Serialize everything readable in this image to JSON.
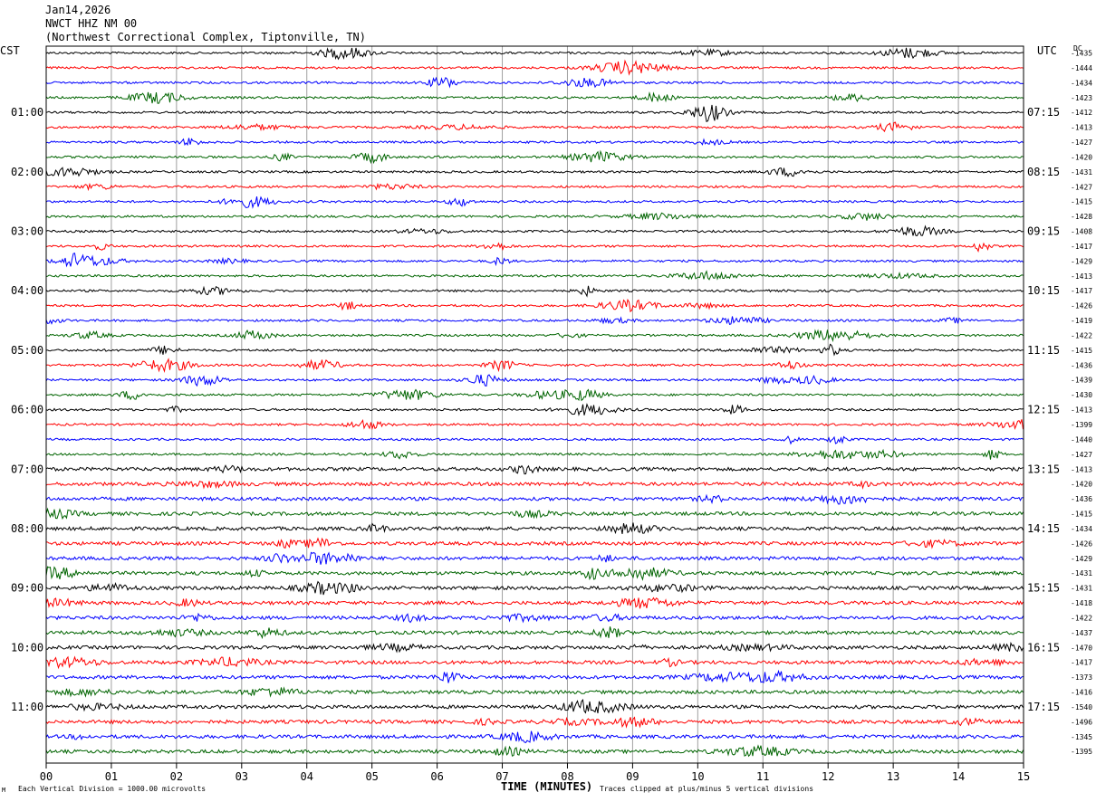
{
  "header": {
    "date": "Jan14,2026",
    "station": "NWCT HHZ NM 00",
    "location": "(Northwest Correctional Complex, Tiptonville, TN)"
  },
  "axes": {
    "left_timezone": "CST",
    "right_timezone": "UTC",
    "dc_label": "DC",
    "xlabel": "TIME (MINUTES)"
  },
  "footer": {
    "left": "Each Vertical Division = 1000.00 microvolts",
    "right": "Traces clipped at plus/minus 5 vertical divisions",
    "corner_mark": "M"
  },
  "colors": {
    "trace_cycle": [
      "#000000",
      "#ff0000",
      "#0000ff",
      "#006400"
    ],
    "grid": "#a0a0a0",
    "frame": "#000000"
  },
  "chart_data": {
    "type": "line",
    "title": "NWCT HHZ NM 00",
    "xlabel": "TIME (MINUTES)",
    "ylabel": "",
    "xlim": [
      0,
      15
    ],
    "x_ticks": [
      "00",
      "01",
      "02",
      "03",
      "04",
      "05",
      "06",
      "07",
      "08",
      "09",
      "10",
      "11",
      "12",
      "13",
      "14",
      "15"
    ],
    "traces_per_hour": 4,
    "trace_minutes": 15,
    "left_hour_labels": [
      "01:00",
      "02:00",
      "03:00",
      "04:00",
      "05:00",
      "06:00",
      "07:00",
      "08:00",
      "09:00",
      "10:00",
      "11:00"
    ],
    "right_hour_labels": [
      "07:15",
      "08:15",
      "09:15",
      "10:15",
      "11:15",
      "12:15",
      "13:15",
      "14:15",
      "15:15",
      "16:15",
      "17:15"
    ],
    "hour_label_first_trace": 4,
    "dc_offsets": [
      -1435,
      -1444,
      -1434,
      -1423,
      -1412,
      -1413,
      -1427,
      -1420,
      -1431,
      -1427,
      -1415,
      -1428,
      -1408,
      -1417,
      -1429,
      -1413,
      -1417,
      -1426,
      -1419,
      -1422,
      -1415,
      -1436,
      -1439,
      -1430,
      -1413,
      -1399,
      -1440,
      -1427,
      -1413,
      -1420,
      -1436,
      -1415,
      -1434,
      -1426,
      -1429,
      -1431,
      -1431,
      -1418,
      -1422,
      -1437,
      -1470,
      -1417,
      -1373,
      -1416,
      -1540,
      -1496,
      -1345,
      -1395
    ]
  }
}
